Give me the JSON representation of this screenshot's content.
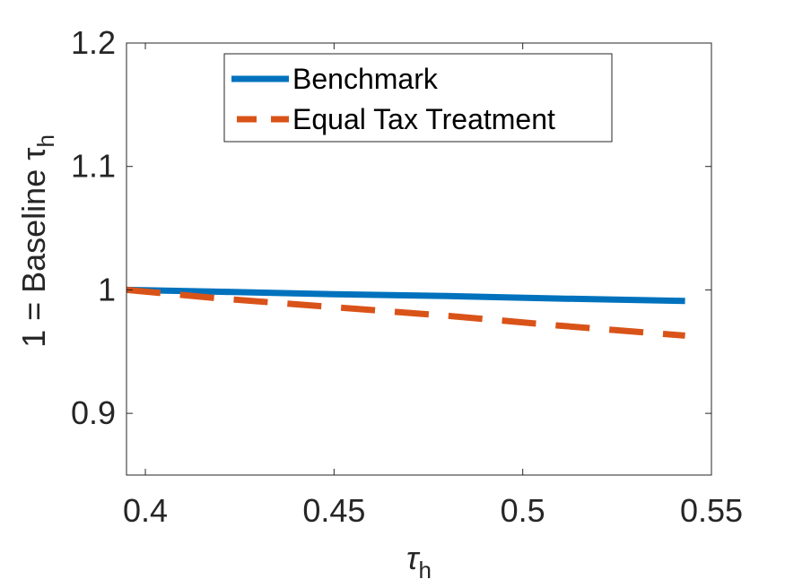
{
  "chart_data": {
    "type": "line",
    "xlabel": "τ",
    "xlabel_sub": "h",
    "ylabel": "1 = Baseline τ",
    "ylabel_sub": "h",
    "xlim": [
      0.395,
      0.55
    ],
    "ylim": [
      0.85,
      1.2
    ],
    "xticks": [
      0.4,
      0.45,
      0.5,
      0.55
    ],
    "xtick_labels": [
      "0.4",
      "0.45",
      "0.5",
      "0.55"
    ],
    "yticks": [
      0.9,
      1.0,
      1.1,
      1.2
    ],
    "ytick_labels": [
      "0.9",
      "1",
      "1.1",
      "1.2"
    ],
    "grid": false,
    "legend_position": "top-center",
    "series": [
      {
        "name": "Benchmark",
        "color": "#0072BD",
        "style": "solid",
        "x": [
          0.395,
          0.42,
          0.45,
          0.48,
          0.51,
          0.543
        ],
        "y": [
          1.0,
          0.9985,
          0.9965,
          0.995,
          0.993,
          0.991
        ]
      },
      {
        "name": "Equal Tax Treatment",
        "color": "#D95319",
        "style": "dashed",
        "x": [
          0.395,
          0.42,
          0.45,
          0.48,
          0.51,
          0.543
        ],
        "y": [
          1.0,
          0.993,
          0.986,
          0.979,
          0.971,
          0.963
        ]
      }
    ]
  }
}
